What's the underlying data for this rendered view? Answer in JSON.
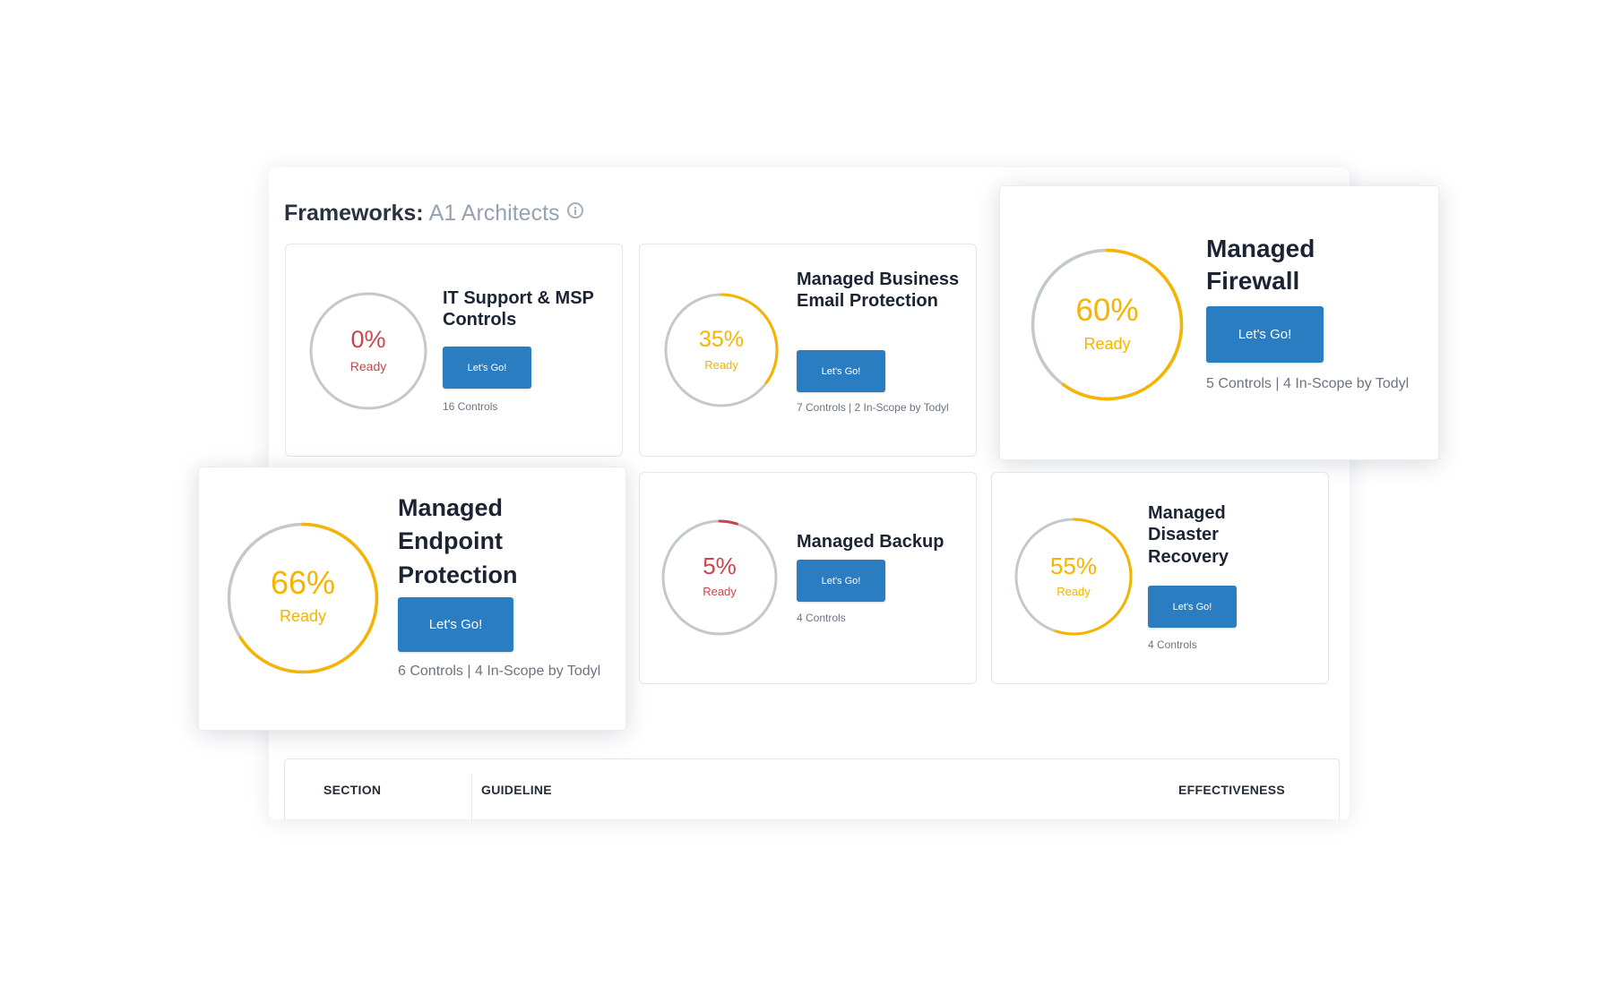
{
  "header": {
    "label": "Frameworks:",
    "organization": "A1 Architects",
    "info_icon": "info-circle-icon"
  },
  "frameworks": [
    {
      "title": "IT Support & MSP Controls",
      "progress": 0,
      "percent_label": "0%",
      "ready_label": "Ready",
      "status_color": "#c8454a",
      "button_label": "Let's Go!",
      "controls_text": "16 Controls"
    },
    {
      "title": "Managed Business Email Protection",
      "progress": 35,
      "percent_label": "35%",
      "ready_label": "Ready",
      "status_color": "#f5b400",
      "button_label": "Let's Go!",
      "controls_text": "7 Controls | 2 In-Scope by Todyl"
    },
    {
      "title": "Managed Firewall",
      "progress": 60,
      "percent_label": "60%",
      "ready_label": "Ready",
      "status_color": "#f5b400",
      "button_label": "Let's Go!",
      "controls_text": "5 Controls | 4 In-Scope by Todyl"
    },
    {
      "title": "Managed Endpoint Protection",
      "progress": 66,
      "percent_label": "66%",
      "ready_label": "Ready",
      "status_color": "#f5b400",
      "button_label": "Let's Go!",
      "controls_text": "6 Controls | 4 In-Scope by Todyl"
    },
    {
      "title": "Managed Backup",
      "progress": 5,
      "percent_label": "5%",
      "ready_label": "Ready",
      "status_color": "#c8454a",
      "button_label": "Let's Go!",
      "controls_text": "4 Controls"
    },
    {
      "title": "Managed Disaster Recovery",
      "progress": 55,
      "percent_label": "55%",
      "ready_label": "Ready",
      "status_color": "#f5b400",
      "button_label": "Let's Go!",
      "controls_text": "4 Controls"
    }
  ],
  "table": {
    "columns": [
      "SECTION",
      "GUIDELINE",
      "EFFECTIVENESS"
    ]
  },
  "colors": {
    "button": "#2b7dc2",
    "track": "#c2c8cc",
    "low": "#c8454a",
    "mid": "#f5b400"
  }
}
